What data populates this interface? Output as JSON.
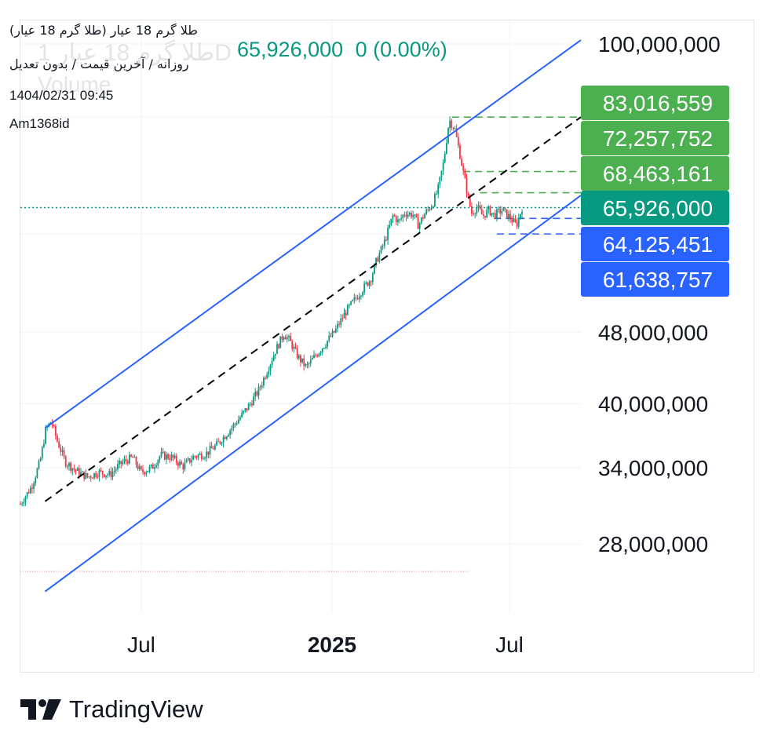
{
  "header": {
    "symbol_line": "(طلا گرم 18 عیار (طلا گرم 18 عیار",
    "settings_line": "روزانه / آخرین قیمت / بدون تعدیل",
    "timestamp": "1404/02/31 09:45",
    "author": "Am1368id",
    "last_price": "65,926,000",
    "change": "0 (0.00%)",
    "watermark_symbol": "طلا گرم 18 عیار 1D",
    "watermark_volume": "Volume"
  },
  "branding": {
    "name": "TradingView"
  },
  "colors": {
    "up": "#089981",
    "down": "#f23645",
    "channel": "#2962ff",
    "green_label": "#4caf50",
    "teal_label": "#089981",
    "blue_label": "#2962ff"
  },
  "chart_data": {
    "type": "candlestick",
    "scale": "log",
    "y_ticks": [
      {
        "value": 100000000,
        "label": "100,000,000"
      },
      {
        "value": 48000000,
        "label": "48,000,000"
      },
      {
        "value": 40000000,
        "label": "40,000,000"
      },
      {
        "value": 34000000,
        "label": "34,000,000"
      },
      {
        "value": 28000000,
        "label": "28,000,000"
      }
    ],
    "x_ticks": [
      {
        "label": "Jul",
        "bold": false
      },
      {
        "label": "2025",
        "bold": true
      },
      {
        "label": "Jul",
        "bold": false
      }
    ],
    "price_labels": [
      {
        "value": 83016559,
        "label": "83,016,559",
        "style": "green"
      },
      {
        "value": 72257752,
        "label": "72,257,752",
        "style": "green"
      },
      {
        "value": 68463161,
        "label": "68,463,161",
        "style": "green"
      },
      {
        "value": 65926000,
        "label": "65,926,000",
        "style": "teal"
      },
      {
        "value": 64125451,
        "label": "64,125,451",
        "style": "blue"
      },
      {
        "value": 61638757,
        "label": "61,638,757",
        "style": "blue"
      }
    ],
    "series_path": [
      [
        0,
        31000000
      ],
      [
        0.02,
        32400000
      ],
      [
        0.035,
        34500000
      ],
      [
        0.045,
        37400000
      ],
      [
        0.055,
        38300000
      ],
      [
        0.065,
        36500000
      ],
      [
        0.08,
        34500000
      ],
      [
        0.1,
        33700000
      ],
      [
        0.12,
        33200000
      ],
      [
        0.14,
        33600000
      ],
      [
        0.16,
        33400000
      ],
      [
        0.18,
        34400000
      ],
      [
        0.2,
        34900000
      ],
      [
        0.215,
        33600000
      ],
      [
        0.235,
        34000000
      ],
      [
        0.25,
        35100000
      ],
      [
        0.27,
        34900000
      ],
      [
        0.29,
        34100000
      ],
      [
        0.31,
        35000000
      ],
      [
        0.33,
        35200000
      ],
      [
        0.35,
        36000000
      ],
      [
        0.37,
        37200000
      ],
      [
        0.39,
        38500000
      ],
      [
        0.41,
        40000000
      ],
      [
        0.425,
        41400000
      ],
      [
        0.44,
        43500000
      ],
      [
        0.455,
        45800000
      ],
      [
        0.47,
        47800000
      ],
      [
        0.48,
        47000000
      ],
      [
        0.495,
        45100000
      ],
      [
        0.51,
        43900000
      ],
      [
        0.525,
        45100000
      ],
      [
        0.54,
        46300000
      ],
      [
        0.56,
        48000000
      ],
      [
        0.58,
        50500000
      ],
      [
        0.6,
        52500000
      ],
      [
        0.615,
        54000000
      ],
      [
        0.625,
        55000000
      ],
      [
        0.635,
        57500000
      ],
      [
        0.65,
        60500000
      ],
      [
        0.665,
        64700000
      ],
      [
        0.675,
        63500000
      ],
      [
        0.685,
        65000000
      ],
      [
        0.7,
        64800000
      ],
      [
        0.71,
        63000000
      ],
      [
        0.72,
        64700000
      ],
      [
        0.735,
        66500000
      ],
      [
        0.745,
        69000000
      ],
      [
        0.755,
        74000000
      ],
      [
        0.765,
        82500000
      ],
      [
        0.775,
        80500000
      ],
      [
        0.785,
        75000000
      ],
      [
        0.795,
        69500000
      ],
      [
        0.805,
        65000000
      ],
      [
        0.815,
        66000000
      ],
      [
        0.825,
        64500000
      ],
      [
        0.835,
        65500000
      ],
      [
        0.845,
        64700000
      ],
      [
        0.86,
        65500000
      ],
      [
        0.875,
        64100000
      ],
      [
        0.885,
        63000000
      ],
      [
        0.895,
        65926000
      ]
    ],
    "channel_upper": [
      [
        0.044,
        37600000
      ],
      [
        1.0,
        101000000
      ]
    ],
    "channel_lower": [
      [
        0.044,
        24800000
      ],
      [
        1.0,
        68000000
      ]
    ],
    "channel_mid": [
      [
        0.044,
        31200000
      ],
      [
        1.0,
        83000000
      ]
    ]
  }
}
